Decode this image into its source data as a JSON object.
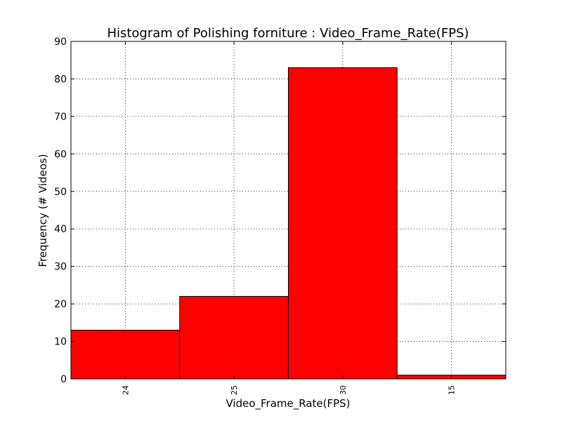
{
  "chart_data": {
    "type": "bar",
    "title": "Histogram of Polishing forniture : Video_Frame_Rate(FPS)",
    "xlabel": "Video_Frame_Rate(FPS)",
    "ylabel": "Frequency (# Videos)",
    "categories": [
      "24",
      "25",
      "30",
      "15"
    ],
    "values": [
      13,
      22,
      83,
      1
    ],
    "ylim": [
      0,
      90
    ],
    "yticks": [
      "0",
      "10",
      "20",
      "30",
      "40",
      "50",
      "60",
      "70",
      "80",
      "90"
    ],
    "grid": true,
    "bar_color": "#ff0000"
  }
}
